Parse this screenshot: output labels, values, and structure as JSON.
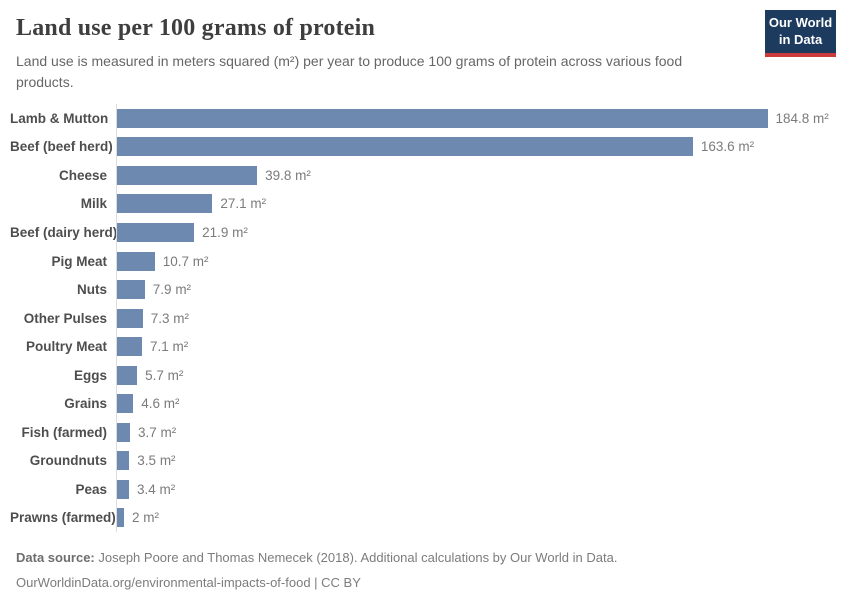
{
  "header": {
    "title": "Land use per 100 grams of protein",
    "subtitle": "Land use is measured in meters squared (m²) per year to produce 100 grams of protein across various food products.",
    "logo": {
      "line1": "Our World",
      "line2": "in Data",
      "bg_color": "#1d3a5f",
      "accent_color": "#cc3b3b"
    }
  },
  "chart_data": {
    "type": "bar",
    "orientation": "horizontal",
    "title": "Land use per 100 grams of protein",
    "xlabel": "",
    "ylabel": "",
    "unit": "m²",
    "xlim": [
      0,
      184.8
    ],
    "grid": false,
    "legend": false,
    "bar_color": "#6e89b0",
    "categories": [
      "Lamb & Mutton",
      "Beef (beef herd)",
      "Cheese",
      "Milk",
      "Beef (dairy herd)",
      "Pig Meat",
      "Nuts",
      "Other Pulses",
      "Poultry Meat",
      "Eggs",
      "Grains",
      "Fish (farmed)",
      "Groundnuts",
      "Peas",
      "Prawns (farmed)"
    ],
    "values": [
      184.8,
      163.6,
      39.8,
      27.1,
      21.9,
      10.7,
      7.9,
      7.3,
      7.1,
      5.7,
      4.6,
      3.7,
      3.5,
      3.4,
      2
    ],
    "value_labels": [
      "184.8 m²",
      "163.6 m²",
      "39.8 m²",
      "27.1 m²",
      "21.9 m²",
      "10.7 m²",
      "7.9 m²",
      "7.3 m²",
      "7.1 m²",
      "5.7 m²",
      "4.6 m²",
      "3.7 m²",
      "3.5 m²",
      "3.4 m²",
      "2 m²"
    ]
  },
  "footer": {
    "source_label": "Data source:",
    "source_text": " Joseph Poore and Thomas Nemecek (2018). Additional calculations by Our World in Data.",
    "link_text": "OurWorldinData.org/environmental-impacts-of-food | CC BY"
  }
}
